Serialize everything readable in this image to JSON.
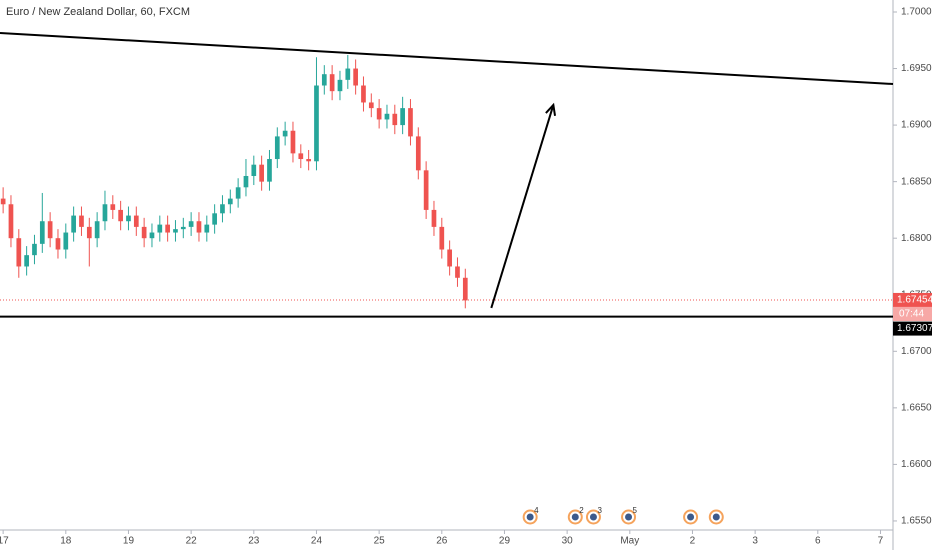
{
  "chart_data": {
    "type": "candlestick",
    "title": "Euro / New Zealand Dollar, 60, FXCM",
    "x": [
      0,
      0.125,
      0.25,
      0.375,
      0.5,
      0.625,
      0.75,
      0.875,
      1,
      1.125,
      1.25,
      1.375,
      1.5,
      1.625,
      1.75,
      1.875,
      2,
      2.125,
      2.25,
      2.375,
      2.5,
      2.625,
      2.75,
      2.875,
      3,
      3.125,
      3.25,
      3.375,
      3.5,
      3.625,
      3.75,
      3.875,
      4,
      4.125,
      4.25,
      4.375,
      4.5,
      4.625,
      4.75,
      4.875,
      5,
      5.125,
      5.25,
      5.375,
      5.5,
      5.625,
      5.75,
      5.875,
      6,
      6.125,
      6.25,
      6.375,
      6.5,
      6.625,
      6.75,
      6.875,
      7,
      7.125,
      7.25,
      7.375
    ],
    "open": [
      1.6835,
      1.683,
      1.68,
      1.6775,
      1.6785,
      1.6795,
      1.6815,
      1.68,
      1.679,
      1.6805,
      1.682,
      1.681,
      1.68,
      1.6815,
      1.683,
      1.6825,
      1.6815,
      1.682,
      1.681,
      1.68,
      1.6805,
      1.6812,
      1.6805,
      1.6808,
      1.681,
      1.6815,
      1.6805,
      1.6812,
      1.6822,
      1.683,
      1.6835,
      1.6845,
      1.6855,
      1.6865,
      1.685,
      1.687,
      1.689,
      1.6895,
      1.6875,
      1.687,
      1.6868,
      1.6935,
      1.6945,
      1.693,
      1.694,
      1.695,
      1.6935,
      1.692,
      1.6915,
      1.6905,
      1.691,
      1.69,
      1.6915,
      1.689,
      1.686,
      1.6825,
      1.681,
      1.679,
      1.6775,
      1.6765
    ],
    "high": [
      1.6845,
      1.6838,
      1.6808,
      1.6793,
      1.6803,
      1.684,
      1.6823,
      1.6808,
      1.6813,
      1.6828,
      1.6828,
      1.6818,
      1.6823,
      1.6842,
      1.6838,
      1.6833,
      1.6828,
      1.6828,
      1.6818,
      1.6813,
      1.682,
      1.682,
      1.6816,
      1.6818,
      1.6823,
      1.6823,
      1.682,
      1.683,
      1.6838,
      1.6843,
      1.6853,
      1.687,
      1.6873,
      1.6873,
      1.6878,
      1.6898,
      1.6903,
      1.6903,
      1.6883,
      1.6878,
      1.696,
      1.6953,
      1.6953,
      1.6948,
      1.6962,
      1.6958,
      1.6943,
      1.6928,
      1.6923,
      1.6918,
      1.6918,
      1.6925,
      1.6923,
      1.6898,
      1.6868,
      1.6833,
      1.6818,
      1.6798,
      1.6783,
      1.6773
    ],
    "low": [
      1.6822,
      1.6792,
      1.6765,
      1.6767,
      1.6777,
      1.6787,
      1.6792,
      1.6782,
      1.6782,
      1.6797,
      1.6802,
      1.6775,
      1.6792,
      1.6807,
      1.6817,
      1.6807,
      1.6807,
      1.6802,
      1.6792,
      1.6792,
      1.6797,
      1.6797,
      1.6797,
      1.68,
      1.6802,
      1.6797,
      1.6797,
      1.6804,
      1.6814,
      1.6822,
      1.6827,
      1.6837,
      1.6847,
      1.6842,
      1.6842,
      1.6862,
      1.6882,
      1.6867,
      1.6862,
      1.686,
      1.686,
      1.6927,
      1.6922,
      1.6922,
      1.6932,
      1.6927,
      1.6912,
      1.6907,
      1.6897,
      1.6897,
      1.6892,
      1.6892,
      1.6882,
      1.6852,
      1.6817,
      1.6802,
      1.6782,
      1.6767,
      1.6757,
      1.6738
    ],
    "close": [
      1.683,
      1.68,
      1.6775,
      1.6785,
      1.6795,
      1.6815,
      1.68,
      1.679,
      1.6805,
      1.682,
      1.681,
      1.68,
      1.6815,
      1.683,
      1.6825,
      1.6815,
      1.682,
      1.681,
      1.68,
      1.6805,
      1.6812,
      1.6805,
      1.6808,
      1.681,
      1.6815,
      1.6805,
      1.6812,
      1.6822,
      1.683,
      1.6835,
      1.6845,
      1.6855,
      1.6865,
      1.685,
      1.687,
      1.689,
      1.6895,
      1.6875,
      1.687,
      1.6868,
      1.6935,
      1.6945,
      1.693,
      1.694,
      1.695,
      1.6935,
      1.692,
      1.6915,
      1.6905,
      1.691,
      1.69,
      1.6915,
      1.689,
      1.686,
      1.6825,
      1.681,
      1.679,
      1.6775,
      1.6765,
      1.6745
    ],
    "up_color": "#26a69a",
    "down_color": "#ef5350",
    "xlim": [
      -0.05,
      14.2
    ],
    "xticks": [
      {
        "value": 0,
        "label": "17"
      },
      {
        "value": 1,
        "label": "18"
      },
      {
        "value": 2,
        "label": "19"
      },
      {
        "value": 3,
        "label": "22"
      },
      {
        "value": 4,
        "label": "23"
      },
      {
        "value": 5,
        "label": "24"
      },
      {
        "value": 6,
        "label": "25"
      },
      {
        "value": 7,
        "label": "26"
      },
      {
        "value": 8,
        "label": "29"
      },
      {
        "value": 9,
        "label": "30"
      },
      {
        "value": 10,
        "label": "May"
      },
      {
        "value": 11,
        "label": "2"
      },
      {
        "value": 12,
        "label": "3"
      },
      {
        "value": 13,
        "label": "6"
      },
      {
        "value": 14,
        "label": "7"
      }
    ],
    "ylim": [
      1.6542,
      1.70106
    ],
    "yticks": [
      {
        "value": 1.7,
        "label": "1.70000"
      },
      {
        "value": 1.695,
        "label": "1.69500"
      },
      {
        "value": 1.69,
        "label": "1.69000"
      },
      {
        "value": 1.685,
        "label": "1.68500"
      },
      {
        "value": 1.68,
        "label": "1.68000"
      },
      {
        "value": 1.675,
        "label": "1.67500"
      },
      {
        "value": 1.67,
        "label": "1.67000"
      },
      {
        "value": 1.665,
        "label": "1.66500"
      },
      {
        "value": 1.66,
        "label": "1.66000"
      },
      {
        "value": 1.655,
        "label": "1.65500"
      }
    ],
    "last_price": 1.67454,
    "countdown": "07:44",
    "hline": 1.67307,
    "trendline": {
      "x": [
        -0.05,
        14.2
      ],
      "y": [
        1.69814,
        1.69363
      ]
    },
    "arrow": {
      "x": [
        7.79,
        8.78
      ],
      "y": [
        1.67383,
        1.69178
      ]
    },
    "events": {
      "x": [
        8.41,
        9.13,
        9.42,
        9.98,
        10.97,
        11.38
      ],
      "labels": [
        "4",
        "2",
        "3",
        "5",
        null,
        null
      ]
    }
  }
}
